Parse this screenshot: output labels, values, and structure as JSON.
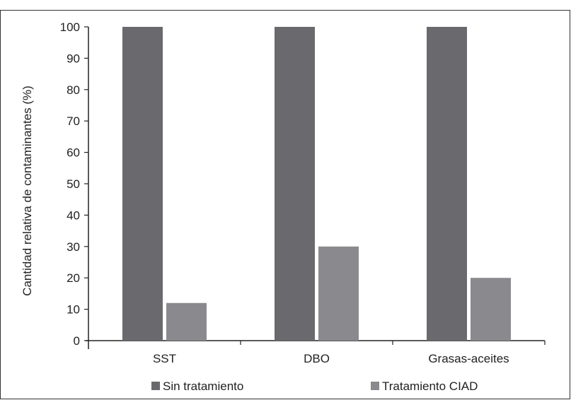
{
  "chart_data": {
    "type": "bar",
    "title": "",
    "xlabel": "",
    "ylabel": "Cantidad relativa de contaminantes (%)",
    "ylim": [
      0,
      100
    ],
    "yticks": [
      "0",
      "10",
      "20",
      "30",
      "40",
      "50",
      "60",
      "70",
      "80",
      "90",
      "100"
    ],
    "categories": [
      "SST",
      "DBO",
      "Grasas-aceites"
    ],
    "series": [
      {
        "name": "Sin tratamiento",
        "values": [
          100,
          100,
          100
        ],
        "color": "#6a6a6e"
      },
      {
        "name": "Tratamiento CIAD",
        "values": [
          12,
          30,
          20
        ],
        "color": "#8a8a8e"
      }
    ],
    "legend": "bottom",
    "grid": false
  }
}
